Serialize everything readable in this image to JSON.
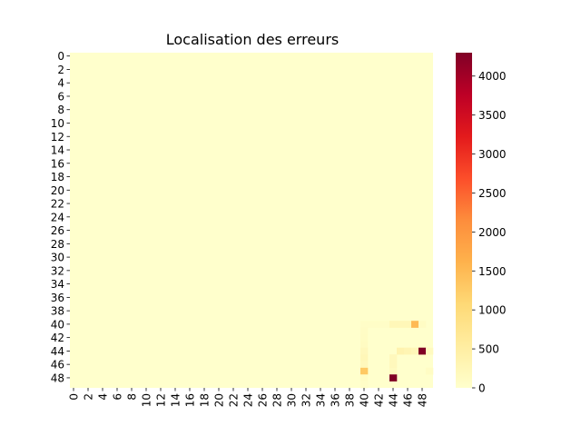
{
  "chart_data": {
    "type": "heatmap",
    "title": "Localisation des erreurs",
    "xlabel": "",
    "ylabel": "",
    "rows": 50,
    "cols": 50,
    "x_tick_labels": [
      "0",
      "2",
      "4",
      "6",
      "8",
      "10",
      "12",
      "14",
      "16",
      "18",
      "20",
      "22",
      "24",
      "26",
      "28",
      "30",
      "32",
      "34",
      "36",
      "38",
      "40",
      "42",
      "44",
      "46",
      "48"
    ],
    "y_tick_labels": [
      "0",
      "2",
      "4",
      "6",
      "8",
      "10",
      "12",
      "14",
      "16",
      "18",
      "20",
      "22",
      "24",
      "26",
      "28",
      "30",
      "32",
      "34",
      "36",
      "38",
      "40",
      "42",
      "44",
      "46",
      "48"
    ],
    "colorscale": "YlOrRd",
    "vmin": 0,
    "vmax": 4300,
    "colorbar_ticks": [
      0,
      500,
      1000,
      1500,
      2000,
      2500,
      3000,
      3500,
      4000
    ],
    "background_value": 0,
    "nonzero_cells": [
      {
        "row": 40,
        "col": 40,
        "value": 60
      },
      {
        "row": 40,
        "col": 41,
        "value": 60
      },
      {
        "row": 40,
        "col": 42,
        "value": 60
      },
      {
        "row": 40,
        "col": 43,
        "value": 60
      },
      {
        "row": 40,
        "col": 44,
        "value": 250
      },
      {
        "row": 40,
        "col": 45,
        "value": 250
      },
      {
        "row": 40,
        "col": 46,
        "value": 250
      },
      {
        "row": 40,
        "col": 47,
        "value": 1500
      },
      {
        "row": 40,
        "col": 48,
        "value": 100
      },
      {
        "row": 41,
        "col": 40,
        "value": 80
      },
      {
        "row": 42,
        "col": 40,
        "value": 100
      },
      {
        "row": 43,
        "col": 40,
        "value": 120
      },
      {
        "row": 44,
        "col": 40,
        "value": 200
      },
      {
        "row": 44,
        "col": 45,
        "value": 350
      },
      {
        "row": 44,
        "col": 46,
        "value": 300
      },
      {
        "row": 44,
        "col": 47,
        "value": 250
      },
      {
        "row": 44,
        "col": 48,
        "value": 4300
      },
      {
        "row": 44,
        "col": 49,
        "value": 150
      },
      {
        "row": 45,
        "col": 40,
        "value": 250
      },
      {
        "row": 45,
        "col": 44,
        "value": 200
      },
      {
        "row": 46,
        "col": 40,
        "value": 200
      },
      {
        "row": 46,
        "col": 44,
        "value": 200
      },
      {
        "row": 47,
        "col": 40,
        "value": 1300
      },
      {
        "row": 47,
        "col": 44,
        "value": 150
      },
      {
        "row": 47,
        "col": 49,
        "value": 100
      },
      {
        "row": 48,
        "col": 40,
        "value": 80
      },
      {
        "row": 48,
        "col": 44,
        "value": 4300
      },
      {
        "row": 49,
        "col": 40,
        "value": 60
      }
    ]
  }
}
